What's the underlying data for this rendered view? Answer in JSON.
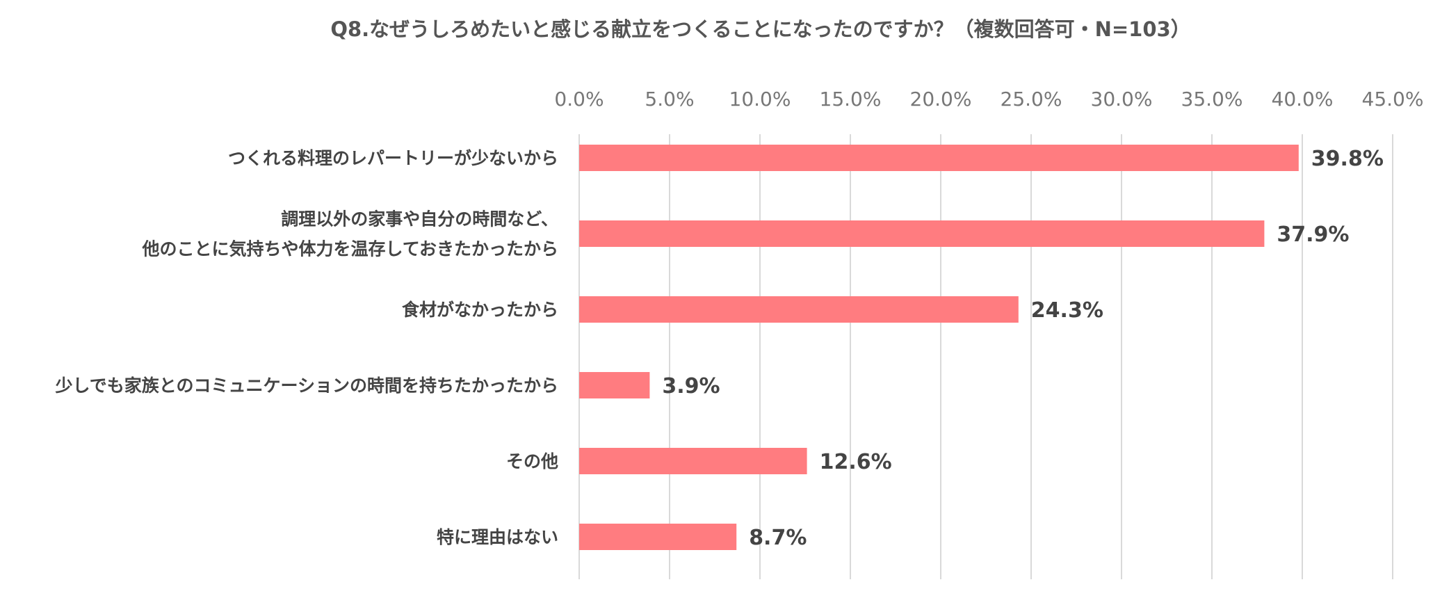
{
  "chart_data": {
    "type": "bar",
    "orientation": "horizontal",
    "title": "Q8.なぜうしろめたいと感じる献立をつくることになったのですか？（複数回答可・N=103）",
    "categories": [
      [
        "つくれる料理のレパートリーが少ないから"
      ],
      [
        "調理以外の家事や自分の時間など、",
        "他のことに気持ちや体力を温存しておきたかったから"
      ],
      [
        "食材がなかったから"
      ],
      [
        "少しでも家族とのコミュニケーションの時間を持ちたかったから"
      ],
      [
        "その他"
      ],
      [
        "特に理由はない"
      ]
    ],
    "values": [
      39.8,
      37.9,
      24.3,
      3.9,
      12.6,
      8.7
    ],
    "value_labels": [
      "39.8%",
      "37.9%",
      "24.3%",
      "3.9%",
      "12.6%",
      "8.7%"
    ],
    "x_ticks": [
      "0.0%",
      "5.0%",
      "10.0%",
      "15.0%",
      "20.0%",
      "25.0%",
      "30.0%",
      "35.0%",
      "40.0%",
      "45.0%"
    ],
    "xlim": [
      0,
      45
    ],
    "tick_step": 5,
    "axis_position": "top",
    "grid": true,
    "legend": false,
    "bar_color": "#FF7C80",
    "grid_color": "#D9D9D9"
  }
}
